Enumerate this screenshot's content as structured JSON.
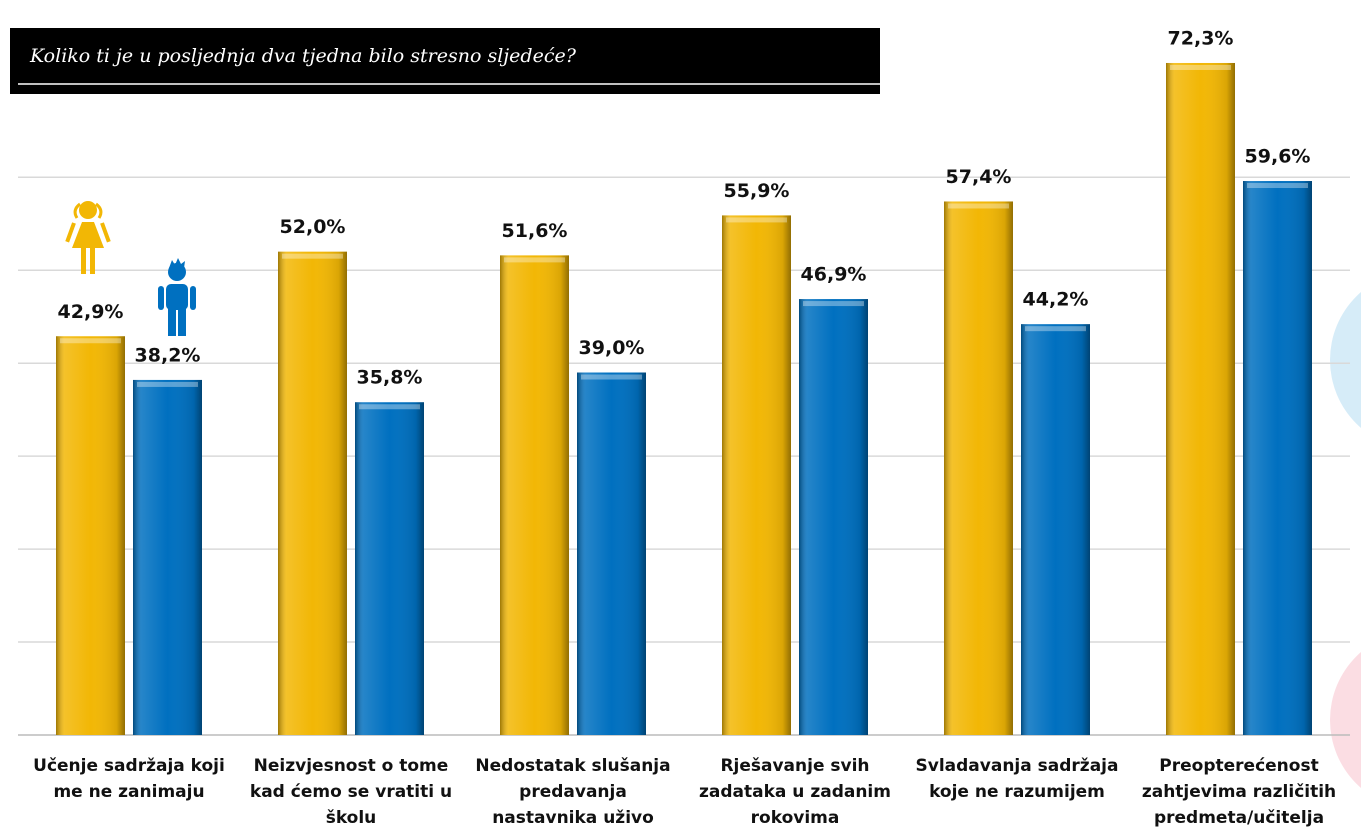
{
  "chart_data": {
    "type": "bar",
    "title": "Koliko ti je u posljednja dva tjedna bilo stresno sljedeće?",
    "categories": [
      "Učenje sadržaja koji me ne zanimaju",
      "Neizvjesnost o tome kad ćemo se vratiti u školu",
      "Nedostatak slušanja predavanja nastavnika uživo",
      "Rješavanje svih zadataka u zadanim rokovima",
      "Svladavanja sadržaja koje ne razumijem",
      "Preopterećenost zahtjevima različitih predmeta/učitelja"
    ],
    "series": [
      {
        "color": "#f2b705",
        "values": [
          42.9,
          52.0,
          51.6,
          55.9,
          57.4,
          72.3
        ],
        "value_labels": [
          "42,9%",
          "52,0%",
          "51,6%",
          "55,9%",
          "57,4%",
          "72,3%"
        ]
      },
      {
        "color": "#0070c0",
        "values": [
          38.2,
          35.8,
          39.0,
          46.9,
          44.2,
          59.6
        ],
        "value_labels": [
          "38,2%",
          "35,8%",
          "39,0%",
          "46,9%",
          "44,2%",
          "59,6%"
        ]
      }
    ],
    "ylim": [
      0,
      78
    ],
    "yticks": [
      0,
      10,
      20,
      30,
      40,
      50,
      60
    ],
    "grid": true
  }
}
